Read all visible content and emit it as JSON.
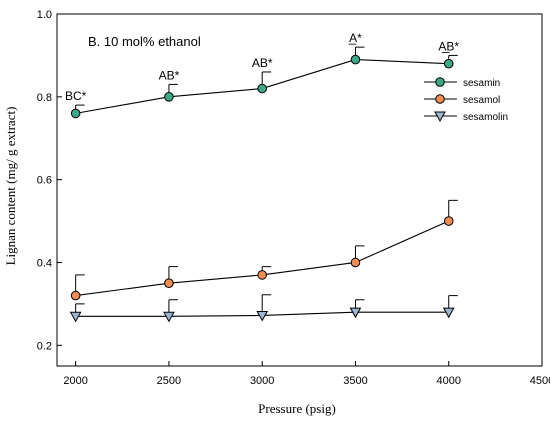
{
  "chart_data": {
    "type": "line",
    "title": "B. 10 mol% ethanol",
    "xlabel": "Pressure (psig)",
    "ylabel": "Lignan content (mg/ g extract)",
    "xlim": [
      1900,
      4500
    ],
    "ylim": [
      0.15,
      1.0
    ],
    "xticks": [
      2000,
      2500,
      3000,
      3500,
      4000,
      4500
    ],
    "yticks": [
      0.2,
      0.4,
      0.6,
      0.8,
      1.0
    ],
    "x": [
      2000,
      2500,
      3000,
      3500,
      4000
    ],
    "legend_position": "top-right",
    "grid": false,
    "series": [
      {
        "name": "sesamin",
        "marker": "circle",
        "color": "#3aa889",
        "values": [
          0.76,
          0.8,
          0.82,
          0.89,
          0.88
        ],
        "errors": [
          0.02,
          0.03,
          0.04,
          0.03,
          0.02
        ],
        "labels": [
          "BC*",
          "AB*",
          "AB*",
          "A*",
          "AB*"
        ],
        "label_underline": [
          false,
          false,
          false,
          true,
          true
        ]
      },
      {
        "name": "sesamol",
        "marker": "circle",
        "color": "#f08d53",
        "values": [
          0.32,
          0.35,
          0.37,
          0.4,
          0.5
        ],
        "errors": [
          0.05,
          0.04,
          0.02,
          0.04,
          0.05
        ]
      },
      {
        "name": "sesamolin",
        "marker": "triangle-down",
        "color": "#9cb5d3",
        "values": [
          0.27,
          0.27,
          0.272,
          0.28,
          0.28
        ],
        "errors": [
          0.03,
          0.04,
          0.05,
          0.03,
          0.04
        ]
      }
    ]
  }
}
